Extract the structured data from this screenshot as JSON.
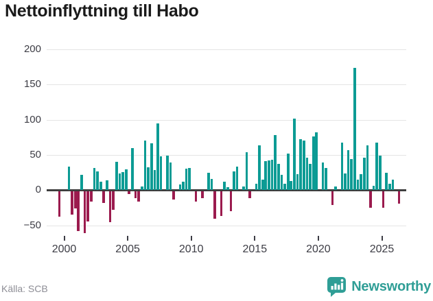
{
  "title": "Nettoinflyttning till Habo",
  "source": "Källa: SCB",
  "branding": {
    "name": "Newsworthy"
  },
  "colors": {
    "positive": "#0c9b94",
    "negative": "#9b1b4e",
    "grid": "#e4e4e4",
    "zero_line": "#3f3f3f",
    "title_text": "#1a1a1a",
    "axis_text": "#3c3c44",
    "source_text": "#8d8d95",
    "brand": "#2f9e96"
  },
  "chart_data": {
    "type": "bar",
    "title": "Nettoinflyttning till Habo",
    "xlabel": "",
    "ylabel": "",
    "frequency": "quarterly",
    "start": "1999-Q3",
    "grid": "horizontal",
    "legend": "none",
    "ylim": [
      -70,
      212
    ],
    "y_ticks": [
      200,
      150,
      100,
      50,
      0,
      -50
    ],
    "y_tick_labels": [
      "200",
      "150",
      "100",
      "50",
      "0",
      "−50"
    ],
    "x_tick_years": [
      2000,
      2005,
      2010,
      2015,
      2020,
      2025
    ],
    "x_tick_labels": [
      "2000",
      "2005",
      "2010",
      "2015",
      "2020",
      "2025"
    ],
    "values": [
      -36,
      0,
      0,
      33,
      -33,
      -25,
      -57,
      22,
      -60,
      -43,
      -15,
      31,
      27,
      12,
      -17,
      14,
      -44,
      -27,
      40,
      24,
      26,
      29,
      -4,
      60,
      -10,
      -15,
      5,
      70,
      32,
      66,
      28,
      95,
      48,
      0,
      49,
      39,
      -12,
      0,
      8,
      12,
      30,
      31,
      0,
      -15,
      0,
      -10,
      0,
      25,
      16,
      -39,
      0,
      -35,
      12,
      4,
      -29,
      27,
      33,
      0,
      5,
      54,
      -10,
      0,
      9,
      64,
      15,
      41,
      42,
      43,
      78,
      37,
      22,
      9,
      52,
      13,
      102,
      23,
      72,
      70,
      46,
      37,
      76,
      82,
      0,
      39,
      31,
      0,
      -20,
      5,
      0,
      67,
      24,
      57,
      44,
      174,
      15,
      23,
      46,
      64,
      -24,
      6,
      67,
      49,
      -24,
      25,
      9,
      15,
      0,
      -18
    ]
  }
}
